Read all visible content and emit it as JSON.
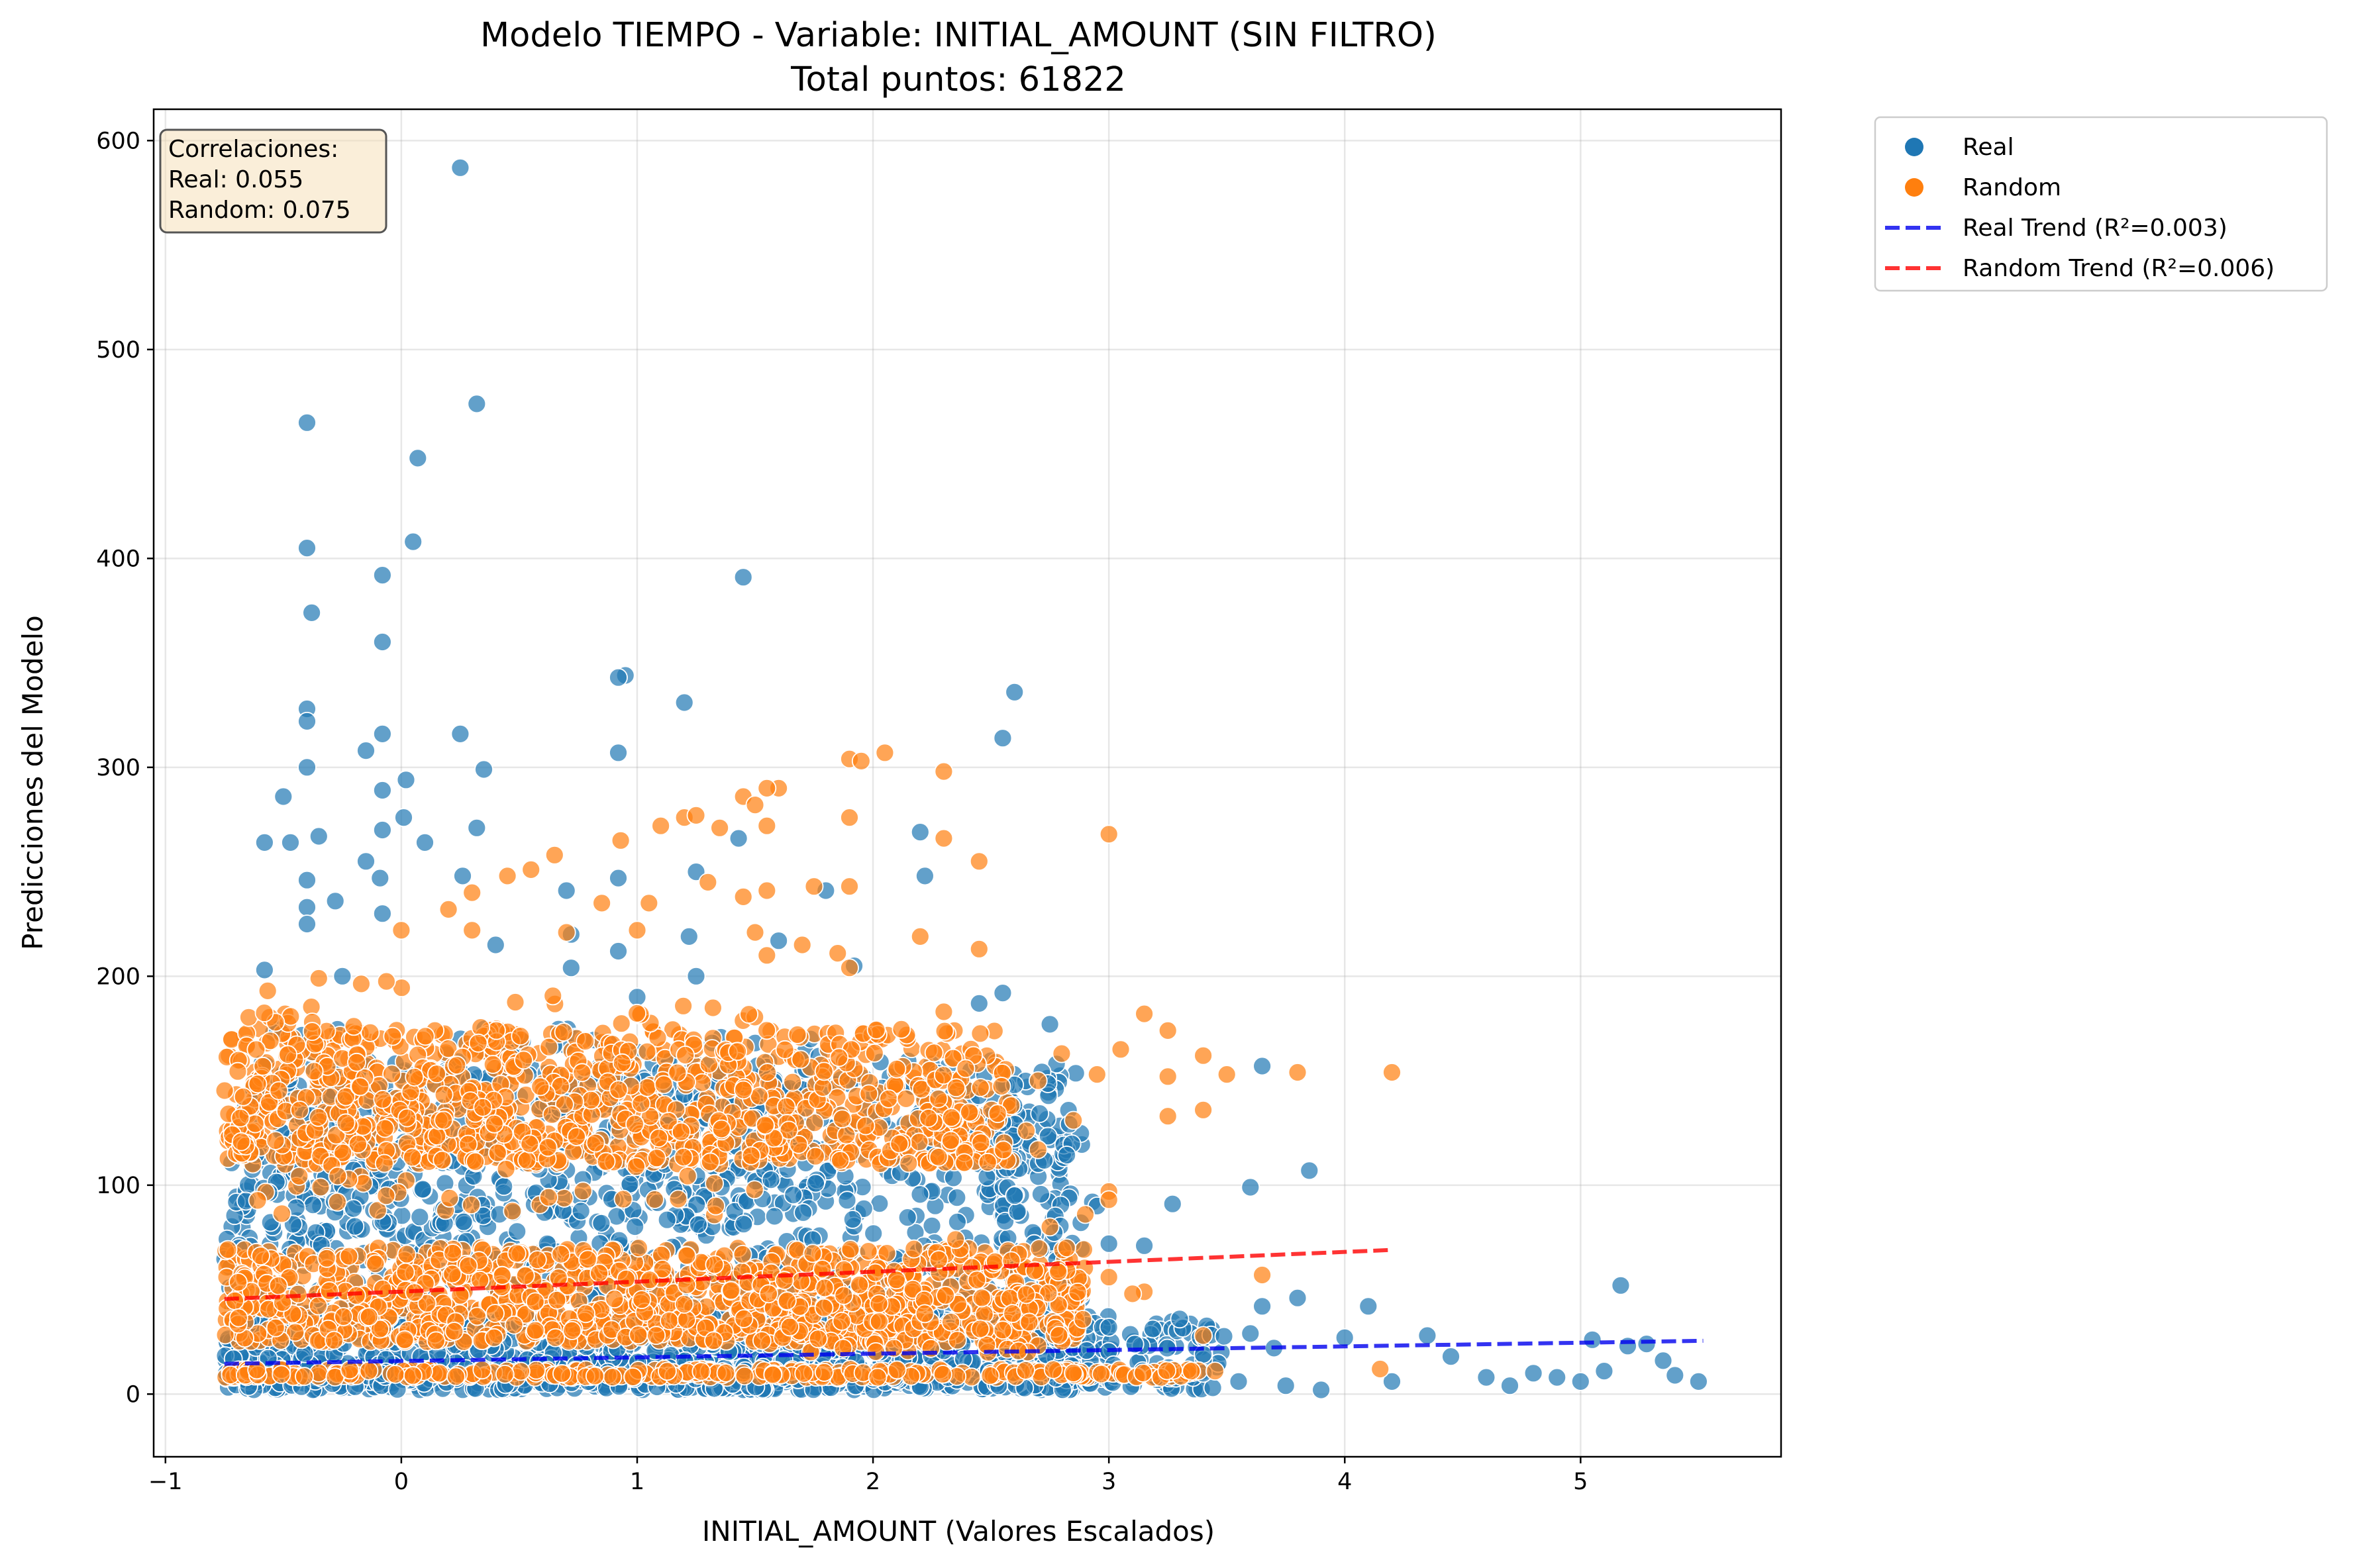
{
  "chart_data": {
    "type": "scatter",
    "title": "Modelo TIEMPO - Variable: INITIAL_AMOUNT (SIN FILTRO)",
    "subtitle": "Total puntos: 61822",
    "xlabel": "INITIAL_AMOUNT (Valores Escalados)",
    "ylabel": "Predicciones del Modelo",
    "xlim": [
      -1.05,
      5.85
    ],
    "ylim": [
      -30,
      615
    ],
    "xticks": [
      -1,
      0,
      1,
      2,
      3,
      4,
      5
    ],
    "yticks": [
      0,
      100,
      200,
      300,
      400,
      500,
      600
    ],
    "xtick_labels": [
      "−1",
      "0",
      "1",
      "2",
      "3",
      "4",
      "5"
    ],
    "ytick_labels": [
      "0",
      "100",
      "200",
      "300",
      "400",
      "500",
      "600"
    ],
    "grid": true,
    "legend_position": "outside top-right",
    "correlations_box": {
      "heading": "Correlaciones:",
      "real": "Real: 0.055",
      "random": "Random: 0.075"
    },
    "series": [
      {
        "name": "Real",
        "kind": "scatter",
        "color": "#1f77b4",
        "points": [
          [
            0.25,
            587
          ],
          [
            0.32,
            474
          ],
          [
            -0.4,
            465
          ],
          [
            0.07,
            448
          ],
          [
            0.05,
            408
          ],
          [
            -0.4,
            405
          ],
          [
            -0.08,
            392
          ],
          [
            1.45,
            391
          ],
          [
            -0.38,
            374
          ],
          [
            -0.08,
            360
          ],
          [
            0.95,
            344
          ],
          [
            0.92,
            343
          ],
          [
            2.6,
            336
          ],
          [
            1.2,
            331
          ],
          [
            -0.4,
            328
          ],
          [
            -0.4,
            322
          ],
          [
            0.25,
            316
          ],
          [
            -0.08,
            316
          ],
          [
            2.55,
            314
          ],
          [
            -0.15,
            308
          ],
          [
            0.92,
            307
          ],
          [
            0.35,
            299
          ],
          [
            -0.4,
            300
          ],
          [
            0.02,
            294
          ],
          [
            -0.5,
            286
          ],
          [
            -0.08,
            289
          ],
          [
            0.01,
            276
          ],
          [
            2.2,
            269
          ],
          [
            -0.08,
            270
          ],
          [
            0.32,
            271
          ],
          [
            0.1,
            264
          ],
          [
            -0.58,
            264
          ],
          [
            -0.35,
            267
          ],
          [
            1.43,
            266
          ],
          [
            -0.47,
            264
          ],
          [
            -0.15,
            255
          ],
          [
            -0.4,
            246
          ],
          [
            2.22,
            248
          ],
          [
            0.26,
            248
          ],
          [
            1.25,
            250
          ],
          [
            -0.09,
            247
          ],
          [
            0.92,
            247
          ],
          [
            1.8,
            241
          ],
          [
            0.7,
            241
          ],
          [
            -0.28,
            236
          ],
          [
            -0.4,
            233
          ],
          [
            -0.08,
            230
          ],
          [
            0.72,
            220
          ],
          [
            1.22,
            219
          ],
          [
            0.92,
            212
          ],
          [
            1.6,
            217
          ],
          [
            0.4,
            215
          ],
          [
            -0.4,
            225
          ],
          [
            -0.58,
            203
          ],
          [
            0.72,
            204
          ],
          [
            1.92,
            205
          ],
          [
            -0.25,
            200
          ],
          [
            1.0,
            190
          ],
          [
            1.25,
            200
          ],
          [
            2.45,
            187
          ],
          [
            2.55,
            192
          ],
          [
            2.75,
            177
          ],
          [
            3.65,
            157
          ],
          [
            3.6,
            99
          ],
          [
            3.85,
            107
          ],
          [
            3.27,
            91
          ],
          [
            2.93,
            92
          ],
          [
            3.0,
            72
          ],
          [
            3.15,
            71
          ],
          [
            2.95,
            90
          ],
          [
            3.8,
            46
          ],
          [
            4.1,
            42
          ],
          [
            3.6,
            29
          ],
          [
            3.7,
            22
          ],
          [
            4.0,
            27
          ],
          [
            4.35,
            28
          ],
          [
            4.45,
            18
          ],
          [
            5.17,
            52
          ],
          [
            5.05,
            26
          ],
          [
            5.28,
            24
          ],
          [
            5.35,
            16
          ],
          [
            5.4,
            9
          ],
          [
            5.2,
            23
          ],
          [
            5.1,
            11
          ],
          [
            4.8,
            10
          ],
          [
            4.6,
            8
          ],
          [
            4.9,
            8
          ],
          [
            5.5,
            6
          ],
          [
            5.0,
            6
          ],
          [
            4.2,
            6
          ],
          [
            3.9,
            2
          ],
          [
            3.75,
            4
          ],
          [
            3.55,
            6
          ],
          [
            3.4,
            10
          ],
          [
            3.2,
            8
          ],
          [
            4.7,
            4
          ],
          [
            3.3,
            36
          ],
          [
            3.4,
            19
          ],
          [
            3.65,
            42
          ],
          [
            3.02,
            14
          ],
          [
            2.65,
            54
          ],
          [
            2.6,
            148
          ],
          [
            2.55,
            130
          ],
          [
            2.6,
            95
          ]
        ],
        "scatter_cloud": [
          {
            "x": [
              -0.75,
              2.9
            ],
            "y": [
              2,
              160
            ],
            "count": 1400
          },
          {
            "x": [
              -0.75,
              3.0
            ],
            "y": [
              2,
              40
            ],
            "count": 900
          },
          {
            "x": [
              -0.6,
              1.8
            ],
            "y": [
              80,
              175
            ],
            "count": 220
          },
          {
            "x": [
              2.55,
              2.62
            ],
            "y": [
              40,
              150
            ],
            "count": 40
          },
          {
            "x": [
              2.9,
              3.5
            ],
            "y": [
              2,
              35
            ],
            "count": 80
          }
        ]
      },
      {
        "name": "Random",
        "kind": "scatter",
        "color": "#ff7f0e",
        "points": [
          [
            2.05,
            307
          ],
          [
            1.9,
            304
          ],
          [
            1.95,
            303
          ],
          [
            2.3,
            298
          ],
          [
            1.6,
            290
          ],
          [
            1.55,
            290
          ],
          [
            1.45,
            286
          ],
          [
            1.5,
            282
          ],
          [
            1.2,
            276
          ],
          [
            1.25,
            277
          ],
          [
            1.35,
            271
          ],
          [
            1.1,
            272
          ],
          [
            1.55,
            272
          ],
          [
            1.9,
            276
          ],
          [
            2.3,
            266
          ],
          [
            3.0,
            268
          ],
          [
            2.45,
            255
          ],
          [
            1.75,
            243
          ],
          [
            1.9,
            243
          ],
          [
            1.55,
            241
          ],
          [
            1.3,
            245
          ],
          [
            1.45,
            238
          ],
          [
            0.93,
            265
          ],
          [
            0.65,
            258
          ],
          [
            0.55,
            251
          ],
          [
            0.45,
            248
          ],
          [
            0.3,
            240
          ],
          [
            0.85,
            235
          ],
          [
            1.05,
            235
          ],
          [
            0.2,
            232
          ],
          [
            1.5,
            221
          ],
          [
            2.2,
            219
          ],
          [
            2.45,
            213
          ],
          [
            1.7,
            215
          ],
          [
            1.55,
            210
          ],
          [
            0.7,
            221
          ],
          [
            1.0,
            222
          ],
          [
            0.3,
            222
          ],
          [
            0.0,
            222
          ],
          [
            -0.35,
            199
          ],
          [
            1.85,
            211
          ],
          [
            1.9,
            204
          ],
          [
            2.3,
            183
          ],
          [
            3.25,
            174
          ],
          [
            3.15,
            182
          ],
          [
            4.2,
            154
          ],
          [
            3.8,
            154
          ],
          [
            3.5,
            153
          ],
          [
            3.4,
            162
          ],
          [
            3.25,
            152
          ],
          [
            3.05,
            165
          ],
          [
            2.95,
            153
          ],
          [
            2.8,
            163
          ],
          [
            2.7,
            150
          ],
          [
            3.4,
            136
          ],
          [
            3.25,
            133
          ],
          [
            2.85,
            131
          ],
          [
            2.65,
            126
          ],
          [
            3.0,
            97
          ],
          [
            3.0,
            93
          ],
          [
            2.9,
            86
          ],
          [
            2.75,
            80
          ],
          [
            3.15,
            49
          ],
          [
            3.1,
            48
          ],
          [
            3.65,
            57
          ],
          [
            3.4,
            28
          ],
          [
            3.35,
            11
          ],
          [
            3.45,
            11
          ],
          [
            4.15,
            12
          ],
          [
            3.0,
            56
          ],
          [
            2.35,
            74
          ],
          [
            2.7,
            117
          ]
        ],
        "scatter_cloud": [
          {
            "x": [
              -0.75,
              2.6
            ],
            "y": [
              110,
              175
            ],
            "count": 900
          },
          {
            "x": [
              -0.75,
              2.9
            ],
            "y": [
              25,
              70
            ],
            "count": 950
          },
          {
            "x": [
              -0.75,
              3.4
            ],
            "y": [
              8,
              12
            ],
            "count": 260
          },
          {
            "x": [
              -0.7,
              1.5
            ],
            "y": [
              85,
              200
            ],
            "count": 160
          },
          {
            "x": [
              1.5,
              2.8
            ],
            "y": [
              20,
              55
            ],
            "count": 120
          }
        ]
      },
      {
        "name": "Real Trend (R²=0.003)",
        "kind": "trend",
        "color": "#0000ee",
        "x": [
          -0.75,
          5.52
        ],
        "y": [
          14.5,
          25.5
        ]
      },
      {
        "name": "Random Trend (R²=0.006)",
        "kind": "trend",
        "color": "#ff0000",
        "x": [
          -0.75,
          4.2
        ],
        "y": [
          45.5,
          69.0
        ]
      }
    ]
  }
}
